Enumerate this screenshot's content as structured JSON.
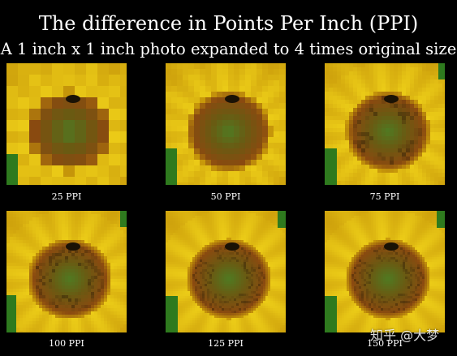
{
  "header": {
    "title": "The difference in Points Per Inch (PPI)",
    "subtitle": "A 1 inch x 1 inch photo expanded to 4 times original size"
  },
  "panels": [
    {
      "label": "25 PPI",
      "ppi": 25
    },
    {
      "label": "50 PPI",
      "ppi": 50
    },
    {
      "label": "75 PPI",
      "ppi": 75
    },
    {
      "label": "100 PPI",
      "ppi": 100
    },
    {
      "label": "125 PPI",
      "ppi": 125
    },
    {
      "label": "150 PPI",
      "ppi": 150
    }
  ],
  "watermark": "知乎 @大梦",
  "colors": {
    "background": "#000000",
    "petal": "#f2d51a",
    "petal_dark": "#c99a0a",
    "disc_outer": "#8a4a10",
    "disc_mid": "#6a5a12",
    "disc_center": "#4f7a22",
    "leaf": "#2e7a1e"
  }
}
